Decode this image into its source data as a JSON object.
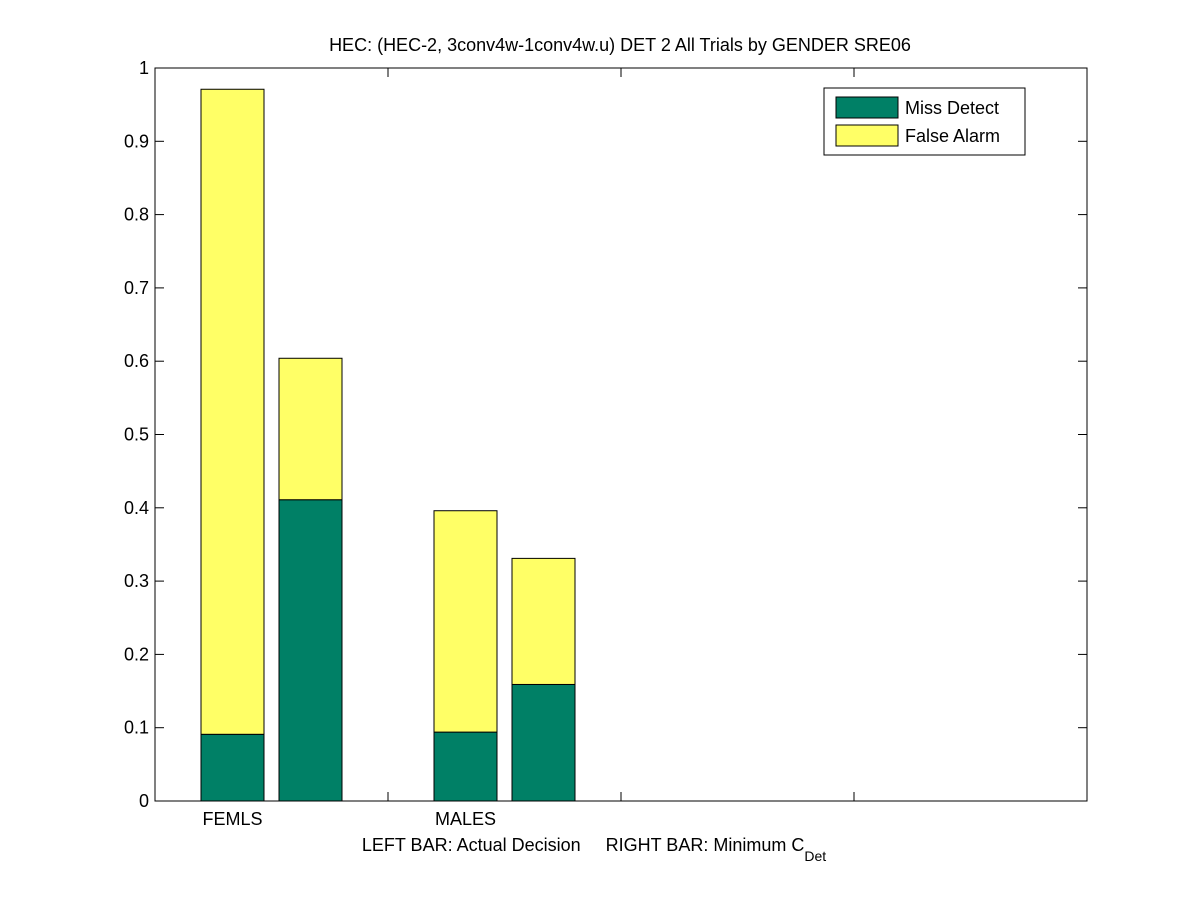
{
  "chart_data": {
    "type": "bar",
    "stacked": true,
    "title": "HEC: (HEC-2, 3conv4w-1conv4w.u) DET 2 All Trials by GENDER SRE06",
    "xlabel_prefix": "LEFT BAR: Actual Decision     RIGHT BAR: Minimum C",
    "xlabel_subscript": "Det",
    "ylim": [
      0,
      1
    ],
    "yticks": [
      "0",
      "0.1",
      "0.2",
      "0.3",
      "0.4",
      "0.5",
      "0.6",
      "0.7",
      "0.8",
      "0.9",
      "1"
    ],
    "categories": [
      "FEMLS",
      "MALES"
    ],
    "bars_per_category": [
      "Actual Decision",
      "Minimum C_Det"
    ],
    "series": [
      {
        "name": "Miss Detect",
        "color": "#008066",
        "values": [
          [
            0.091,
            0.411
          ],
          [
            0.094,
            0.159
          ]
        ]
      },
      {
        "name": "False Alarm",
        "color": "#ffff66",
        "values": [
          [
            0.88,
            0.193
          ],
          [
            0.302,
            0.172
          ]
        ]
      }
    ],
    "legend_position": "top-right",
    "grid": false
  }
}
